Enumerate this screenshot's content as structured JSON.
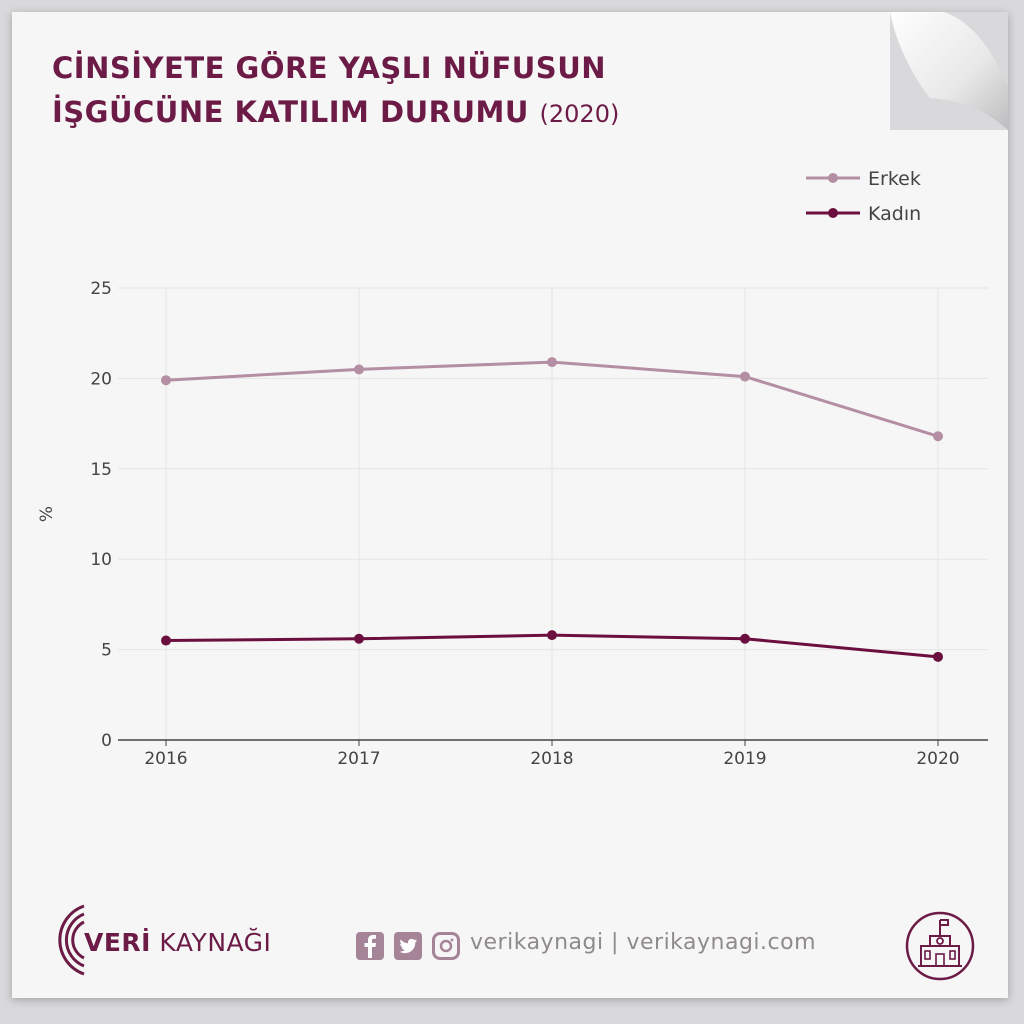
{
  "title": {
    "line1": "CİNSİYETE GÖRE YAŞLI NÜFUSUN",
    "line2": "İŞGÜCÜNE KATILIM DURUMU",
    "year": "(2020)"
  },
  "colors": {
    "erkek": "#b48ea3",
    "kadin": "#6b0f3e",
    "title": "#6b1b46",
    "grid": "#e6e4e5",
    "axis": "#444444"
  },
  "chart_data": {
    "type": "line",
    "x": [
      "2016",
      "2017",
      "2018",
      "2019",
      "2020"
    ],
    "ylabel": "%",
    "xlabel": "",
    "ylim": [
      0,
      25
    ],
    "yticks": [
      0,
      5,
      10,
      15,
      20,
      25
    ],
    "grid": true,
    "legend_position": "top-right",
    "series": [
      {
        "name": "Erkek",
        "values": [
          19.9,
          20.5,
          20.9,
          20.1,
          16.8
        ]
      },
      {
        "name": "Kadın",
        "values": [
          5.5,
          5.6,
          5.8,
          5.6,
          4.6
        ]
      }
    ]
  },
  "footer": {
    "brand_bold": "VERİ",
    "brand_rest": " KAYNAĞI",
    "social_text": "verikaynagi | verikaynagi.com"
  },
  "icons": [
    "facebook-icon",
    "twitter-icon",
    "instagram-icon",
    "school-building-icon",
    "veri-kaynagi-logo-icon"
  ]
}
